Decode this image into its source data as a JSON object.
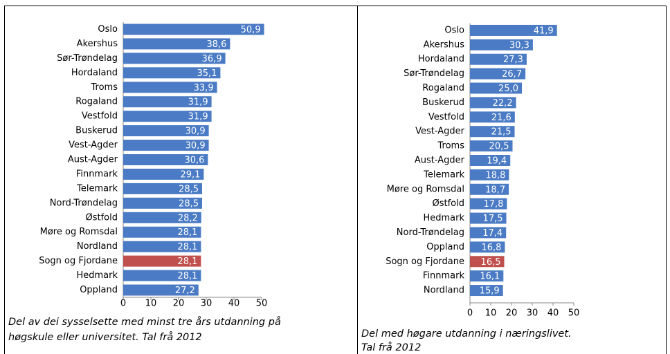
{
  "chart_data": [
    {
      "type": "bar",
      "orientation": "horizontal",
      "categories": [
        "Oslo",
        "Akershus",
        "Sør-Trøndelag",
        "Hordaland",
        "Troms",
        "Rogaland",
        "Vestfold",
        "Buskerud",
        "Vest-Agder",
        "Aust-Agder",
        "Finnmark",
        "Telemark",
        "Nord-Trøndelag",
        "Østfold",
        "Møre og Romsdal",
        "Nordland",
        "Sogn og Fjordane",
        "Hedmark",
        "Oppland"
      ],
      "values": [
        50.9,
        38.6,
        36.9,
        35.1,
        33.9,
        31.9,
        31.9,
        30.9,
        30.9,
        30.6,
        29.1,
        28.5,
        28.5,
        28.2,
        28.1,
        28.1,
        28.1,
        28.1,
        27.2
      ],
      "value_labels": [
        "50,9",
        "38,6",
        "36,9",
        "35,1",
        "33,9",
        "31,9",
        "31,9",
        "30,9",
        "30,9",
        "30,6",
        "29,1",
        "28,5",
        "28,5",
        "28,2",
        "28,1",
        "28,1",
        "28,1",
        "28,1",
        "27,2"
      ],
      "colors": [
        "#4a7bc4",
        "#4a7bc4",
        "#4a7bc4",
        "#4a7bc4",
        "#4a7bc4",
        "#4a7bc4",
        "#4a7bc4",
        "#4a7bc4",
        "#4a7bc4",
        "#4a7bc4",
        "#4a7bc4",
        "#4a7bc4",
        "#4a7bc4",
        "#4a7bc4",
        "#4a7bc4",
        "#4a7bc4",
        "#c0504d",
        "#4a7bc4",
        "#4a7bc4"
      ],
      "xlim": [
        0,
        50
      ],
      "xticks": [
        0,
        10,
        20,
        30,
        40,
        50
      ],
      "caption": [
        "Del av dei sysselsette med minst tre års utdanning på",
        "høgskule eller universitet. Tal frå 2012"
      ]
    },
    {
      "type": "bar",
      "orientation": "horizontal",
      "categories": [
        "Oslo",
        "Akershus",
        "Hordaland",
        "Sør-Trøndelag",
        "Rogaland",
        "Buskerud",
        "Vestfold",
        "Vest-Agder",
        "Troms",
        "Aust-Agder",
        "Telemark",
        "Møre og Romsdal",
        "Østfold",
        "Hedmark",
        "Nord-Trøndelag",
        "Oppland",
        "Sogn og Fjordane",
        "Finnmark",
        "Nordland"
      ],
      "values": [
        41.9,
        30.3,
        27.3,
        26.7,
        25.0,
        22.2,
        21.6,
        21.5,
        20.5,
        19.4,
        18.8,
        18.7,
        17.8,
        17.5,
        17.4,
        16.8,
        16.5,
        16.1,
        15.9
      ],
      "value_labels": [
        "41,9",
        "30,3",
        "27,3",
        "26,7",
        "25,0",
        "22,2",
        "21,6",
        "21,5",
        "20,5",
        "19,4",
        "18,8",
        "18,7",
        "17,8",
        "17,5",
        "17,4",
        "16,8",
        "16,5",
        "16,1",
        "15,9"
      ],
      "colors": [
        "#4a7bc4",
        "#4a7bc4",
        "#4a7bc4",
        "#4a7bc4",
        "#4a7bc4",
        "#4a7bc4",
        "#4a7bc4",
        "#4a7bc4",
        "#4a7bc4",
        "#4a7bc4",
        "#4a7bc4",
        "#4a7bc4",
        "#4a7bc4",
        "#4a7bc4",
        "#4a7bc4",
        "#4a7bc4",
        "#c0504d",
        "#4a7bc4",
        "#4a7bc4"
      ],
      "xlim": [
        0,
        50
      ],
      "xticks": [
        0,
        10,
        20,
        30,
        40,
        50
      ],
      "caption": [
        "Del med høgare utdanning i næringslivet.",
        "Tal frå 2012"
      ]
    }
  ]
}
